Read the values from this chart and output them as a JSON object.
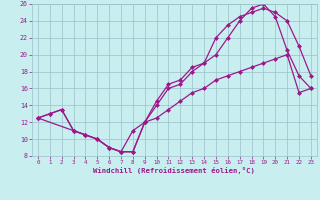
{
  "line1_x": [
    0,
    1,
    2,
    3,
    4,
    5,
    6,
    7,
    8,
    9,
    10,
    11,
    12,
    13,
    14,
    15,
    16,
    17,
    18,
    19,
    20,
    21,
    22,
    23
  ],
  "line1_y": [
    12.5,
    13.0,
    13.5,
    11.0,
    10.5,
    10.0,
    9.0,
    8.5,
    8.5,
    12.0,
    14.5,
    16.5,
    17.0,
    18.5,
    19.0,
    22.0,
    23.5,
    24.5,
    25.0,
    25.5,
    25.0,
    24.0,
    21.0,
    17.5
  ],
  "line2_x": [
    0,
    1,
    2,
    3,
    4,
    5,
    6,
    7,
    8,
    9,
    10,
    11,
    12,
    13,
    14,
    15,
    16,
    17,
    18,
    19,
    20,
    21,
    22,
    23
  ],
  "line2_y": [
    12.5,
    13.0,
    13.5,
    11.0,
    10.5,
    10.0,
    9.0,
    8.5,
    8.5,
    12.0,
    14.0,
    16.0,
    16.5,
    18.0,
    19.0,
    20.0,
    22.0,
    24.0,
    25.5,
    26.0,
    24.5,
    20.5,
    17.5,
    16.0
  ],
  "line3_x": [
    0,
    3,
    4,
    5,
    6,
    7,
    8,
    9,
    10,
    11,
    12,
    13,
    14,
    15,
    16,
    17,
    18,
    19,
    20,
    21,
    22,
    23
  ],
  "line3_y": [
    12.5,
    11.0,
    10.5,
    10.0,
    9.0,
    8.5,
    11.0,
    12.0,
    12.5,
    13.5,
    14.5,
    15.5,
    16.0,
    17.0,
    17.5,
    18.0,
    18.5,
    19.0,
    19.5,
    20.0,
    15.5,
    16.0
  ],
  "xlim": [
    -0.5,
    23.5
  ],
  "ylim": [
    8,
    26
  ],
  "yticks": [
    8,
    10,
    12,
    14,
    16,
    18,
    20,
    22,
    24,
    26
  ],
  "xticks": [
    0,
    1,
    2,
    3,
    4,
    5,
    6,
    7,
    8,
    9,
    10,
    11,
    12,
    13,
    14,
    15,
    16,
    17,
    18,
    19,
    20,
    21,
    22,
    23
  ],
  "xlabel": "Windchill (Refroidissement éolien,°C)",
  "line_color": "#9b1a8a",
  "bg_color": "#c8eef0",
  "grid_color": "#9bbfc8",
  "marker": "D",
  "markersize": 2.0,
  "linewidth": 0.9
}
